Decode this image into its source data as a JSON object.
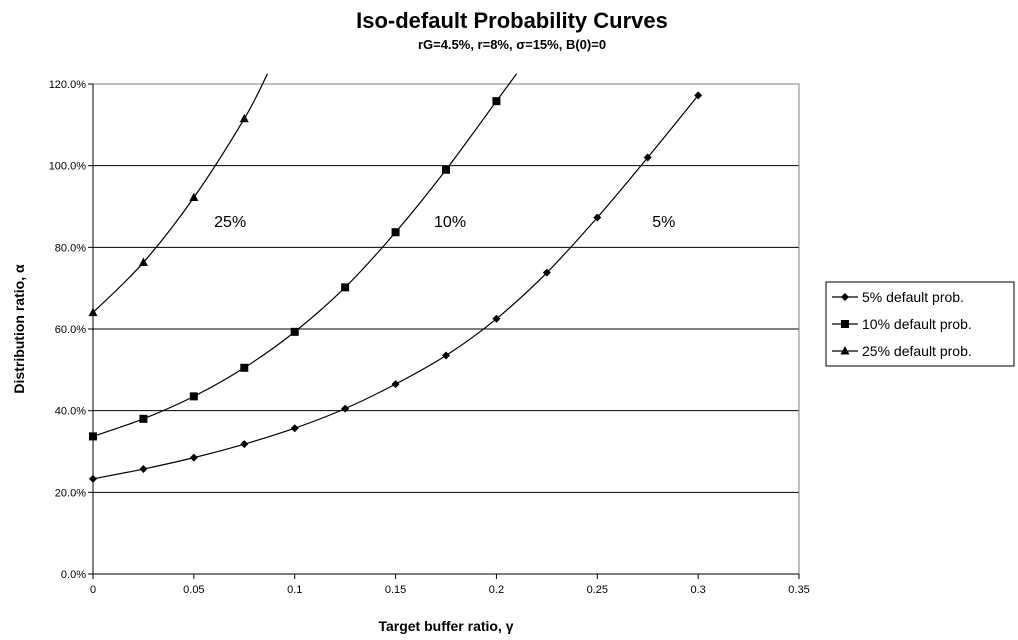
{
  "chart_data": {
    "type": "line",
    "title": "Iso-default Probability Curves",
    "subtitle": "rG=4.5%, r=8%, σ=15%, B(0)=0",
    "xlabel": "Target buffer ratio, γ",
    "ylabel": "Distribution ratio, α",
    "xlim": [
      0,
      0.35
    ],
    "ylim": [
      0,
      1.2
    ],
    "x_ticks": [
      0,
      0.05,
      0.1,
      0.15,
      0.2,
      0.25,
      0.3,
      0.35
    ],
    "x_tick_labels": [
      "0",
      "0.05",
      "0.1",
      "0.15",
      "0.2",
      "0.25",
      "0.3",
      "0.35"
    ],
    "y_ticks": [
      0,
      0.2,
      0.4,
      0.6,
      0.8,
      1.0,
      1.2
    ],
    "y_tick_labels": [
      "0.0%",
      "20.0%",
      "40.0%",
      "60.0%",
      "80.0%",
      "100.0%",
      "120.0%"
    ],
    "grid": "horizontal",
    "legend_position": "right",
    "series": [
      {
        "name": "5% default prob.",
        "marker": "diamond",
        "x": [
          0,
          0.025,
          0.05,
          0.075,
          0.1,
          0.125,
          0.15,
          0.175,
          0.2,
          0.225,
          0.25,
          0.275,
          0.3
        ],
        "y": [
          0.233,
          0.257,
          0.285,
          0.318,
          0.357,
          0.405,
          0.465,
          0.535,
          0.625,
          0.738,
          0.873,
          1.02,
          1.172
        ]
      },
      {
        "name": "10% default prob.",
        "marker": "square",
        "x": [
          0,
          0.025,
          0.05,
          0.075,
          0.1,
          0.125,
          0.15,
          0.175,
          0.2
        ],
        "y": [
          0.337,
          0.38,
          0.435,
          0.505,
          0.593,
          0.702,
          0.837,
          0.99,
          1.158
        ],
        "extend_to": [
          0.21,
          1.225
        ]
      },
      {
        "name": "25% default prob.",
        "marker": "triangle",
        "x": [
          0,
          0.025,
          0.05,
          0.075
        ],
        "y": [
          0.64,
          0.763,
          0.922,
          1.115
        ],
        "extend_to": [
          0.0865,
          1.225
        ]
      }
    ],
    "annotations": [
      {
        "text": "25%",
        "x": 0.068,
        "y": 0.85
      },
      {
        "text": "10%",
        "x": 0.177,
        "y": 0.85
      },
      {
        "text": "5%",
        "x": 0.283,
        "y": 0.85
      }
    ]
  }
}
